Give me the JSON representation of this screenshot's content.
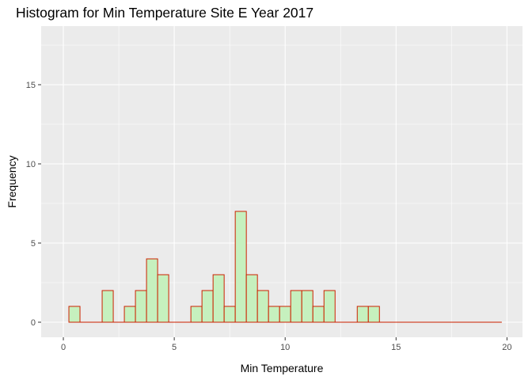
{
  "chart_data": {
    "type": "bar",
    "title": "Histogram for Min Temperature Site E Year 2017",
    "xlabel": "Min Temperature",
    "ylabel": "Frequency",
    "xlim": [
      -1.0,
      20.7
    ],
    "ylim": [
      -0.95,
      18.7
    ],
    "x_ticks": [
      0,
      5,
      10,
      15,
      20
    ],
    "x_tick_labels": [
      "0",
      "5",
      "10",
      "15",
      "20"
    ],
    "y_ticks": [
      0,
      5,
      10,
      15
    ],
    "y_tick_labels": [
      "0",
      "5",
      "10",
      "15"
    ],
    "bin_width": 0.5,
    "bin_start": 0.25,
    "counts": [
      1,
      0,
      0,
      2,
      0,
      1,
      2,
      4,
      3,
      0,
      0,
      1,
      2,
      3,
      1,
      7,
      3,
      2,
      1,
      1,
      2,
      2,
      1,
      2,
      0,
      0,
      1,
      1,
      0,
      0,
      0,
      0,
      0,
      0,
      0,
      0,
      0,
      0,
      0
    ],
    "grid": true,
    "bar_fill": "#c6f0be",
    "bar_stroke": "#cc2200",
    "panel_background": "#ebebeb",
    "grid_color": "#ffffff"
  }
}
